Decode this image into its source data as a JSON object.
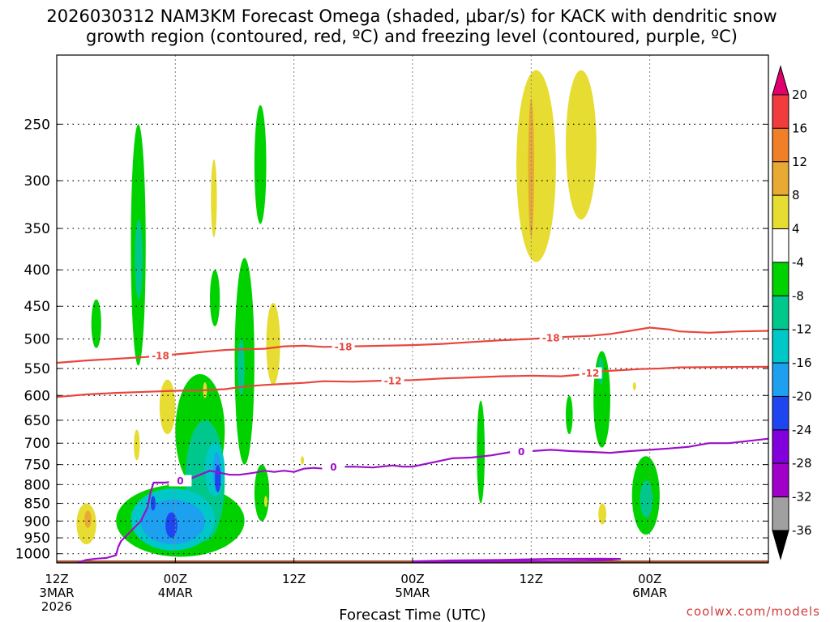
{
  "title": {
    "line1": "2026030312 NAM3KM Forecast Omega (shaded, μbar/s) for KACK with dendritic snow",
    "line2": "growth region (contoured, red, ºC) and freezing level (contoured, purple, ºC)"
  },
  "credit": "coolwx.com/models",
  "colors": {
    "dgz_contour": "#e8463c",
    "freezing_level": "#9b10c8",
    "ground": "#a0522d",
    "grid": "#000000"
  },
  "chart_data": {
    "type": "heatmap",
    "xlabel": "Forecast Time (UTC)",
    "ylabel": "",
    "x_range_hours": [
      0,
      72
    ],
    "y_range_hpa": [
      1030,
      200
    ],
    "y_scale": "log-pressure",
    "x_ticks": [
      {
        "hour": 0,
        "label": "12Z",
        "sub1": "3MAR",
        "sub2": "2026"
      },
      {
        "hour": 12,
        "label": "00Z",
        "sub1": "4MAR",
        "sub2": ""
      },
      {
        "hour": 24,
        "label": "12Z",
        "sub1": "",
        "sub2": ""
      },
      {
        "hour": 36,
        "label": "00Z",
        "sub1": "5MAR",
        "sub2": ""
      },
      {
        "hour": 48,
        "label": "12Z",
        "sub1": "",
        "sub2": ""
      },
      {
        "hour": 60,
        "label": "00Z",
        "sub1": "6MAR",
        "sub2": ""
      }
    ],
    "y_ticks": [
      250,
      300,
      350,
      400,
      450,
      500,
      550,
      600,
      650,
      700,
      750,
      800,
      850,
      900,
      950,
      1000
    ],
    "grid": true,
    "colorbar": {
      "unit": "μbar/s",
      "labels": [
        "20",
        "16",
        "12",
        "8",
        "4",
        "-4",
        "-8",
        "-12",
        "-16",
        "-20",
        "-24",
        "-28",
        "-32",
        "-36"
      ],
      "bins": [
        {
          "from": 20,
          "to": 24,
          "color": "#e0006e"
        },
        {
          "from": 16,
          "to": 20,
          "color": "#f03c3c"
        },
        {
          "from": 12,
          "to": 16,
          "color": "#f07f28"
        },
        {
          "from": 8,
          "to": 12,
          "color": "#e8aa32"
        },
        {
          "from": 4,
          "to": 8,
          "color": "#e6dc32"
        },
        {
          "from": -4,
          "to": 4,
          "color": "#ffffff"
        },
        {
          "from": -8,
          "to": -4,
          "color": "#00d200"
        },
        {
          "from": -12,
          "to": -8,
          "color": "#00c88c"
        },
        {
          "from": -16,
          "to": -12,
          "color": "#00c8c8"
        },
        {
          "from": -20,
          "to": -16,
          "color": "#1ea0f0"
        },
        {
          "from": -24,
          "to": -20,
          "color": "#1e46f0"
        },
        {
          "from": -28,
          "to": -24,
          "color": "#8200dc"
        },
        {
          "from": -32,
          "to": -28,
          "color": "#a000c8"
        },
        {
          "from": -36,
          "to": -32,
          "color": "#a0a0a0"
        },
        {
          "from": -40,
          "to": -36,
          "color": "#000000"
        }
      ]
    },
    "contours": [
      {
        "level": -18,
        "label": "-18",
        "color": "#e8463c",
        "points": [
          [
            0,
            540
          ],
          [
            3,
            536
          ],
          [
            6,
            533
          ],
          [
            9,
            530
          ],
          [
            11,
            527
          ],
          [
            13,
            524
          ],
          [
            15,
            521
          ],
          [
            17,
            518
          ],
          [
            19,
            517
          ],
          [
            21,
            516
          ],
          [
            23,
            512
          ],
          [
            25,
            511
          ],
          [
            27,
            513
          ],
          [
            30,
            512
          ],
          [
            33,
            511
          ],
          [
            36,
            510
          ],
          [
            39,
            508
          ],
          [
            42,
            505
          ],
          [
            45,
            502
          ],
          [
            48,
            500
          ],
          [
            51,
            497
          ],
          [
            54,
            495
          ],
          [
            56,
            492
          ],
          [
            58,
            487
          ],
          [
            60,
            482
          ],
          [
            62,
            485
          ],
          [
            63,
            488
          ],
          [
            66,
            490
          ],
          [
            69,
            488
          ],
          [
            72,
            487
          ]
        ],
        "label_hours": [
          10.5,
          29,
          50
        ]
      },
      {
        "level": -12,
        "label": "-12",
        "color": "#e8463c",
        "points": [
          [
            0,
            603
          ],
          [
            3,
            598
          ],
          [
            6,
            595
          ],
          [
            9,
            593
          ],
          [
            12,
            591
          ],
          [
            15,
            590
          ],
          [
            17,
            588
          ],
          [
            19,
            583
          ],
          [
            21,
            580
          ],
          [
            23,
            578
          ],
          [
            25,
            576
          ],
          [
            27,
            573
          ],
          [
            30,
            574
          ],
          [
            33,
            572
          ],
          [
            36,
            571
          ],
          [
            39,
            568
          ],
          [
            42,
            566
          ],
          [
            45,
            564
          ],
          [
            48,
            563
          ],
          [
            51,
            564
          ],
          [
            53,
            561
          ],
          [
            55,
            555
          ],
          [
            57,
            553
          ],
          [
            59,
            551
          ],
          [
            61,
            550
          ],
          [
            63,
            548
          ],
          [
            72,
            547
          ]
        ],
        "label_hours": [
          34,
          54
        ]
      },
      {
        "level": 0,
        "label": "0",
        "color": "#9b10c8",
        "points": [
          [
            6.2,
            980
          ],
          [
            6.5,
            960
          ],
          [
            7.5,
            930
          ],
          [
            8.5,
            900
          ],
          [
            9.2,
            860
          ],
          [
            9.5,
            820
          ],
          [
            9.8,
            795
          ],
          [
            11,
            795
          ],
          [
            12.5,
            790
          ],
          [
            13.5,
            785
          ],
          [
            14.5,
            775
          ],
          [
            15.5,
            765
          ],
          [
            16.5,
            770
          ],
          [
            17.5,
            775
          ],
          [
            18.5,
            775
          ],
          [
            20,
            770
          ],
          [
            21,
            765
          ],
          [
            22,
            768
          ],
          [
            23,
            765
          ],
          [
            24,
            768
          ],
          [
            25,
            760
          ],
          [
            26,
            758
          ],
          [
            27,
            760
          ],
          [
            28,
            756
          ],
          [
            30,
            755
          ],
          [
            32,
            757
          ],
          [
            34,
            752
          ],
          [
            35,
            755
          ],
          [
            36,
            755
          ],
          [
            38,
            745
          ],
          [
            40,
            735
          ],
          [
            42,
            733
          ],
          [
            44,
            728
          ],
          [
            46,
            720
          ],
          [
            48,
            718
          ],
          [
            50,
            715
          ],
          [
            52,
            718
          ],
          [
            54,
            720
          ],
          [
            56,
            722
          ],
          [
            58,
            718
          ],
          [
            60,
            715
          ],
          [
            62,
            712
          ],
          [
            64,
            708
          ],
          [
            66,
            700
          ],
          [
            68,
            700
          ],
          [
            72,
            690
          ]
        ],
        "label_hours": [
          12.5,
          28,
          47
        ]
      },
      {
        "level": 0,
        "label": "",
        "color": "#9b10c8",
        "points": [
          [
            2,
            1030
          ],
          [
            3,
            1020
          ],
          [
            4,
            1016
          ],
          [
            5,
            1014
          ],
          [
            6,
            1005
          ],
          [
            6.2,
            980
          ]
        ],
        "label_hours": []
      },
      {
        "level": 0,
        "label": "",
        "color": "#9b10c8",
        "points": [
          [
            36,
            1025
          ],
          [
            40,
            1022
          ],
          [
            45,
            1020
          ],
          [
            50,
            1017
          ],
          [
            55,
            1016
          ],
          [
            57,
            1017
          ],
          [
            55,
            1022
          ],
          [
            50,
            1024
          ],
          [
            45,
            1025
          ],
          [
            40,
            1026
          ],
          [
            36,
            1026
          ]
        ],
        "label_hours": []
      }
    ],
    "omega_regions": [
      {
        "value": -6,
        "x": [
          3.5,
          4.5
        ],
        "p": [
          440,
          515
        ]
      },
      {
        "value": -6,
        "x": [
          7.5,
          9
        ],
        "p": [
          250,
          545
        ]
      },
      {
        "value": -10,
        "x": [
          7.9,
          8.7
        ],
        "p": [
          340,
          440
        ]
      },
      {
        "value": -6,
        "x": [
          20,
          21.2
        ],
        "p": [
          235,
          345
        ]
      },
      {
        "value": -6,
        "x": [
          15.5,
          16.5
        ],
        "p": [
          400,
          480
        ]
      },
      {
        "value": -6,
        "x": [
          18,
          20
        ],
        "p": [
          385,
          750
        ]
      },
      {
        "value": -10,
        "x": [
          18.3,
          19
        ],
        "p": [
          500,
          600
        ]
      },
      {
        "value": -6,
        "x": [
          20,
          21.5
        ],
        "p": [
          750,
          900
        ]
      },
      {
        "value": -6,
        "x": [
          6,
          19
        ],
        "p": [
          800,
          1010
        ]
      },
      {
        "value": -6,
        "x": [
          12,
          17
        ],
        "p": [
          560,
          810
        ]
      },
      {
        "value": -10,
        "x": [
          13,
          17
        ],
        "p": [
          650,
          960
        ]
      },
      {
        "value": -14,
        "x": [
          7.5,
          16
        ],
        "p": [
          810,
          990
        ]
      },
      {
        "value": -14,
        "x": [
          15,
          17
        ],
        "p": [
          700,
          830
        ]
      },
      {
        "value": -18,
        "x": [
          8.5,
          15
        ],
        "p": [
          840,
          970
        ]
      },
      {
        "value": -18,
        "x": [
          15.8,
          16.6
        ],
        "p": [
          720,
          820
        ]
      },
      {
        "value": -22,
        "x": [
          11,
          12.2
        ],
        "p": [
          875,
          950
        ]
      },
      {
        "value": -22,
        "x": [
          16,
          16.6
        ],
        "p": [
          750,
          820
        ]
      },
      {
        "value": -22,
        "x": [
          9.5,
          10
        ],
        "p": [
          830,
          870
        ]
      },
      {
        "value": -6,
        "x": [
          42.5,
          43.3
        ],
        "p": [
          610,
          850
        ]
      },
      {
        "value": -6,
        "x": [
          51.5,
          52.2
        ],
        "p": [
          600,
          680
        ]
      },
      {
        "value": -6,
        "x": [
          54.3,
          56
        ],
        "p": [
          520,
          710
        ]
      },
      {
        "value": -10,
        "x": [
          54.8,
          55.3
        ],
        "p": [
          530,
          580
        ]
      },
      {
        "value": -6,
        "x": [
          58.2,
          61
        ],
        "p": [
          730,
          940
        ]
      },
      {
        "value": -10,
        "x": [
          59,
          60.3
        ],
        "p": [
          790,
          890
        ]
      },
      {
        "value": 6,
        "x": [
          2,
          4
        ],
        "p": [
          850,
          970
        ]
      },
      {
        "value": 10,
        "x": [
          2.8,
          3.5
        ],
        "p": [
          870,
          920
        ]
      },
      {
        "value": 6,
        "x": [
          7.8,
          8.4
        ],
        "p": [
          670,
          740
        ]
      },
      {
        "value": 6,
        "x": [
          10.4,
          12
        ],
        "p": [
          570,
          680
        ]
      },
      {
        "value": 6,
        "x": [
          14.8,
          15.2
        ],
        "p": [
          575,
          605
        ]
      },
      {
        "value": 6,
        "x": [
          15.6,
          16.2
        ],
        "p": [
          280,
          360
        ]
      },
      {
        "value": 6,
        "x": [
          21.2,
          22.6
        ],
        "p": [
          445,
          580
        ]
      },
      {
        "value": 6,
        "x": [
          21,
          21.3
        ],
        "p": [
          830,
          860
        ]
      },
      {
        "value": 6,
        "x": [
          24.7,
          25
        ],
        "p": [
          730,
          750
        ]
      },
      {
        "value": 6,
        "x": [
          46.5,
          50.5
        ],
        "p": [
          210,
          390
        ]
      },
      {
        "value": 10,
        "x": [
          47.7,
          48.3
        ],
        "p": [
          230,
          360
        ]
      },
      {
        "value": 6,
        "x": [
          51.5,
          54.6
        ],
        "p": [
          210,
          340
        ]
      },
      {
        "value": 6,
        "x": [
          54.8,
          55.6
        ],
        "p": [
          850,
          910
        ]
      },
      {
        "value": 6,
        "x": [
          58.3,
          58.6
        ],
        "p": [
          575,
          590
        ]
      }
    ]
  }
}
